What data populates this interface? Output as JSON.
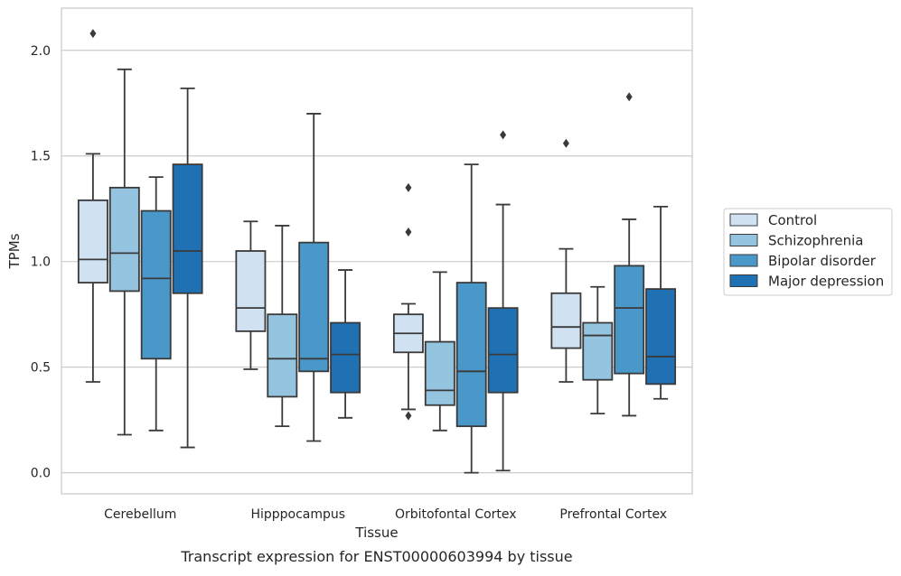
{
  "caption": "Transcript expression for ENST00000603994 by tissue",
  "chart_data": {
    "type": "box",
    "xlabel": "Tissue",
    "ylabel": "TPMs",
    "ylim": [
      -0.1,
      2.2
    ],
    "yticks": [
      "0.0",
      "0.5",
      "1.0",
      "1.5",
      "2.0"
    ],
    "grid": "horizontal",
    "legend_position": "right",
    "categories": [
      "Cerebellum",
      "Hipppocampus",
      "Orbitofontal Cortex",
      "Prefrontal Cortex"
    ],
    "series": [
      {
        "name": "Control",
        "color": "#d0e1f2",
        "boxes": [
          {
            "whisker_low": 0.43,
            "q1": 0.9,
            "median": 1.01,
            "q3": 1.29,
            "whisker_high": 1.51,
            "outliers": [
              2.08
            ]
          },
          {
            "whisker_low": 0.49,
            "q1": 0.67,
            "median": 0.78,
            "q3": 1.05,
            "whisker_high": 1.19,
            "outliers": []
          },
          {
            "whisker_low": 0.3,
            "q1": 0.57,
            "median": 0.66,
            "q3": 0.75,
            "whisker_high": 0.8,
            "outliers": [
              0.27,
              1.14,
              1.35
            ]
          },
          {
            "whisker_low": 0.43,
            "q1": 0.59,
            "median": 0.69,
            "q3": 0.85,
            "whisker_high": 1.06,
            "outliers": [
              1.56
            ]
          }
        ]
      },
      {
        "name": "Schizophrenia",
        "color": "#94c4df",
        "boxes": [
          {
            "whisker_low": 0.18,
            "q1": 0.86,
            "median": 1.04,
            "q3": 1.35,
            "whisker_high": 1.91,
            "outliers": []
          },
          {
            "whisker_low": 0.22,
            "q1": 0.36,
            "median": 0.54,
            "q3": 0.75,
            "whisker_high": 1.17,
            "outliers": []
          },
          {
            "whisker_low": 0.2,
            "q1": 0.32,
            "median": 0.39,
            "q3": 0.62,
            "whisker_high": 0.95,
            "outliers": []
          },
          {
            "whisker_low": 0.28,
            "q1": 0.44,
            "median": 0.65,
            "q3": 0.71,
            "whisker_high": 0.88,
            "outliers": []
          }
        ]
      },
      {
        "name": "Bipolar disorder",
        "color": "#4a98c9",
        "boxes": [
          {
            "whisker_low": 0.2,
            "q1": 0.54,
            "median": 0.92,
            "q3": 1.24,
            "whisker_high": 1.4,
            "outliers": []
          },
          {
            "whisker_low": 0.15,
            "q1": 0.48,
            "median": 0.54,
            "q3": 1.09,
            "whisker_high": 1.7,
            "outliers": []
          },
          {
            "whisker_low": 0.0,
            "q1": 0.22,
            "median": 0.48,
            "q3": 0.9,
            "whisker_high": 1.46,
            "outliers": []
          },
          {
            "whisker_low": 0.27,
            "q1": 0.47,
            "median": 0.78,
            "q3": 0.98,
            "whisker_high": 1.2,
            "outliers": [
              1.78
            ]
          }
        ]
      },
      {
        "name": "Major depression",
        "color": "#2070b4",
        "boxes": [
          {
            "whisker_low": 0.12,
            "q1": 0.85,
            "median": 1.05,
            "q3": 1.46,
            "whisker_high": 1.82,
            "outliers": []
          },
          {
            "whisker_low": 0.26,
            "q1": 0.38,
            "median": 0.56,
            "q3": 0.71,
            "whisker_high": 0.96,
            "outliers": []
          },
          {
            "whisker_low": 0.01,
            "q1": 0.38,
            "median": 0.56,
            "q3": 0.78,
            "whisker_high": 1.27,
            "outliers": [
              1.6
            ]
          },
          {
            "whisker_low": 0.35,
            "q1": 0.42,
            "median": 0.55,
            "q3": 0.87,
            "whisker_high": 1.26,
            "outliers": []
          }
        ]
      }
    ]
  }
}
